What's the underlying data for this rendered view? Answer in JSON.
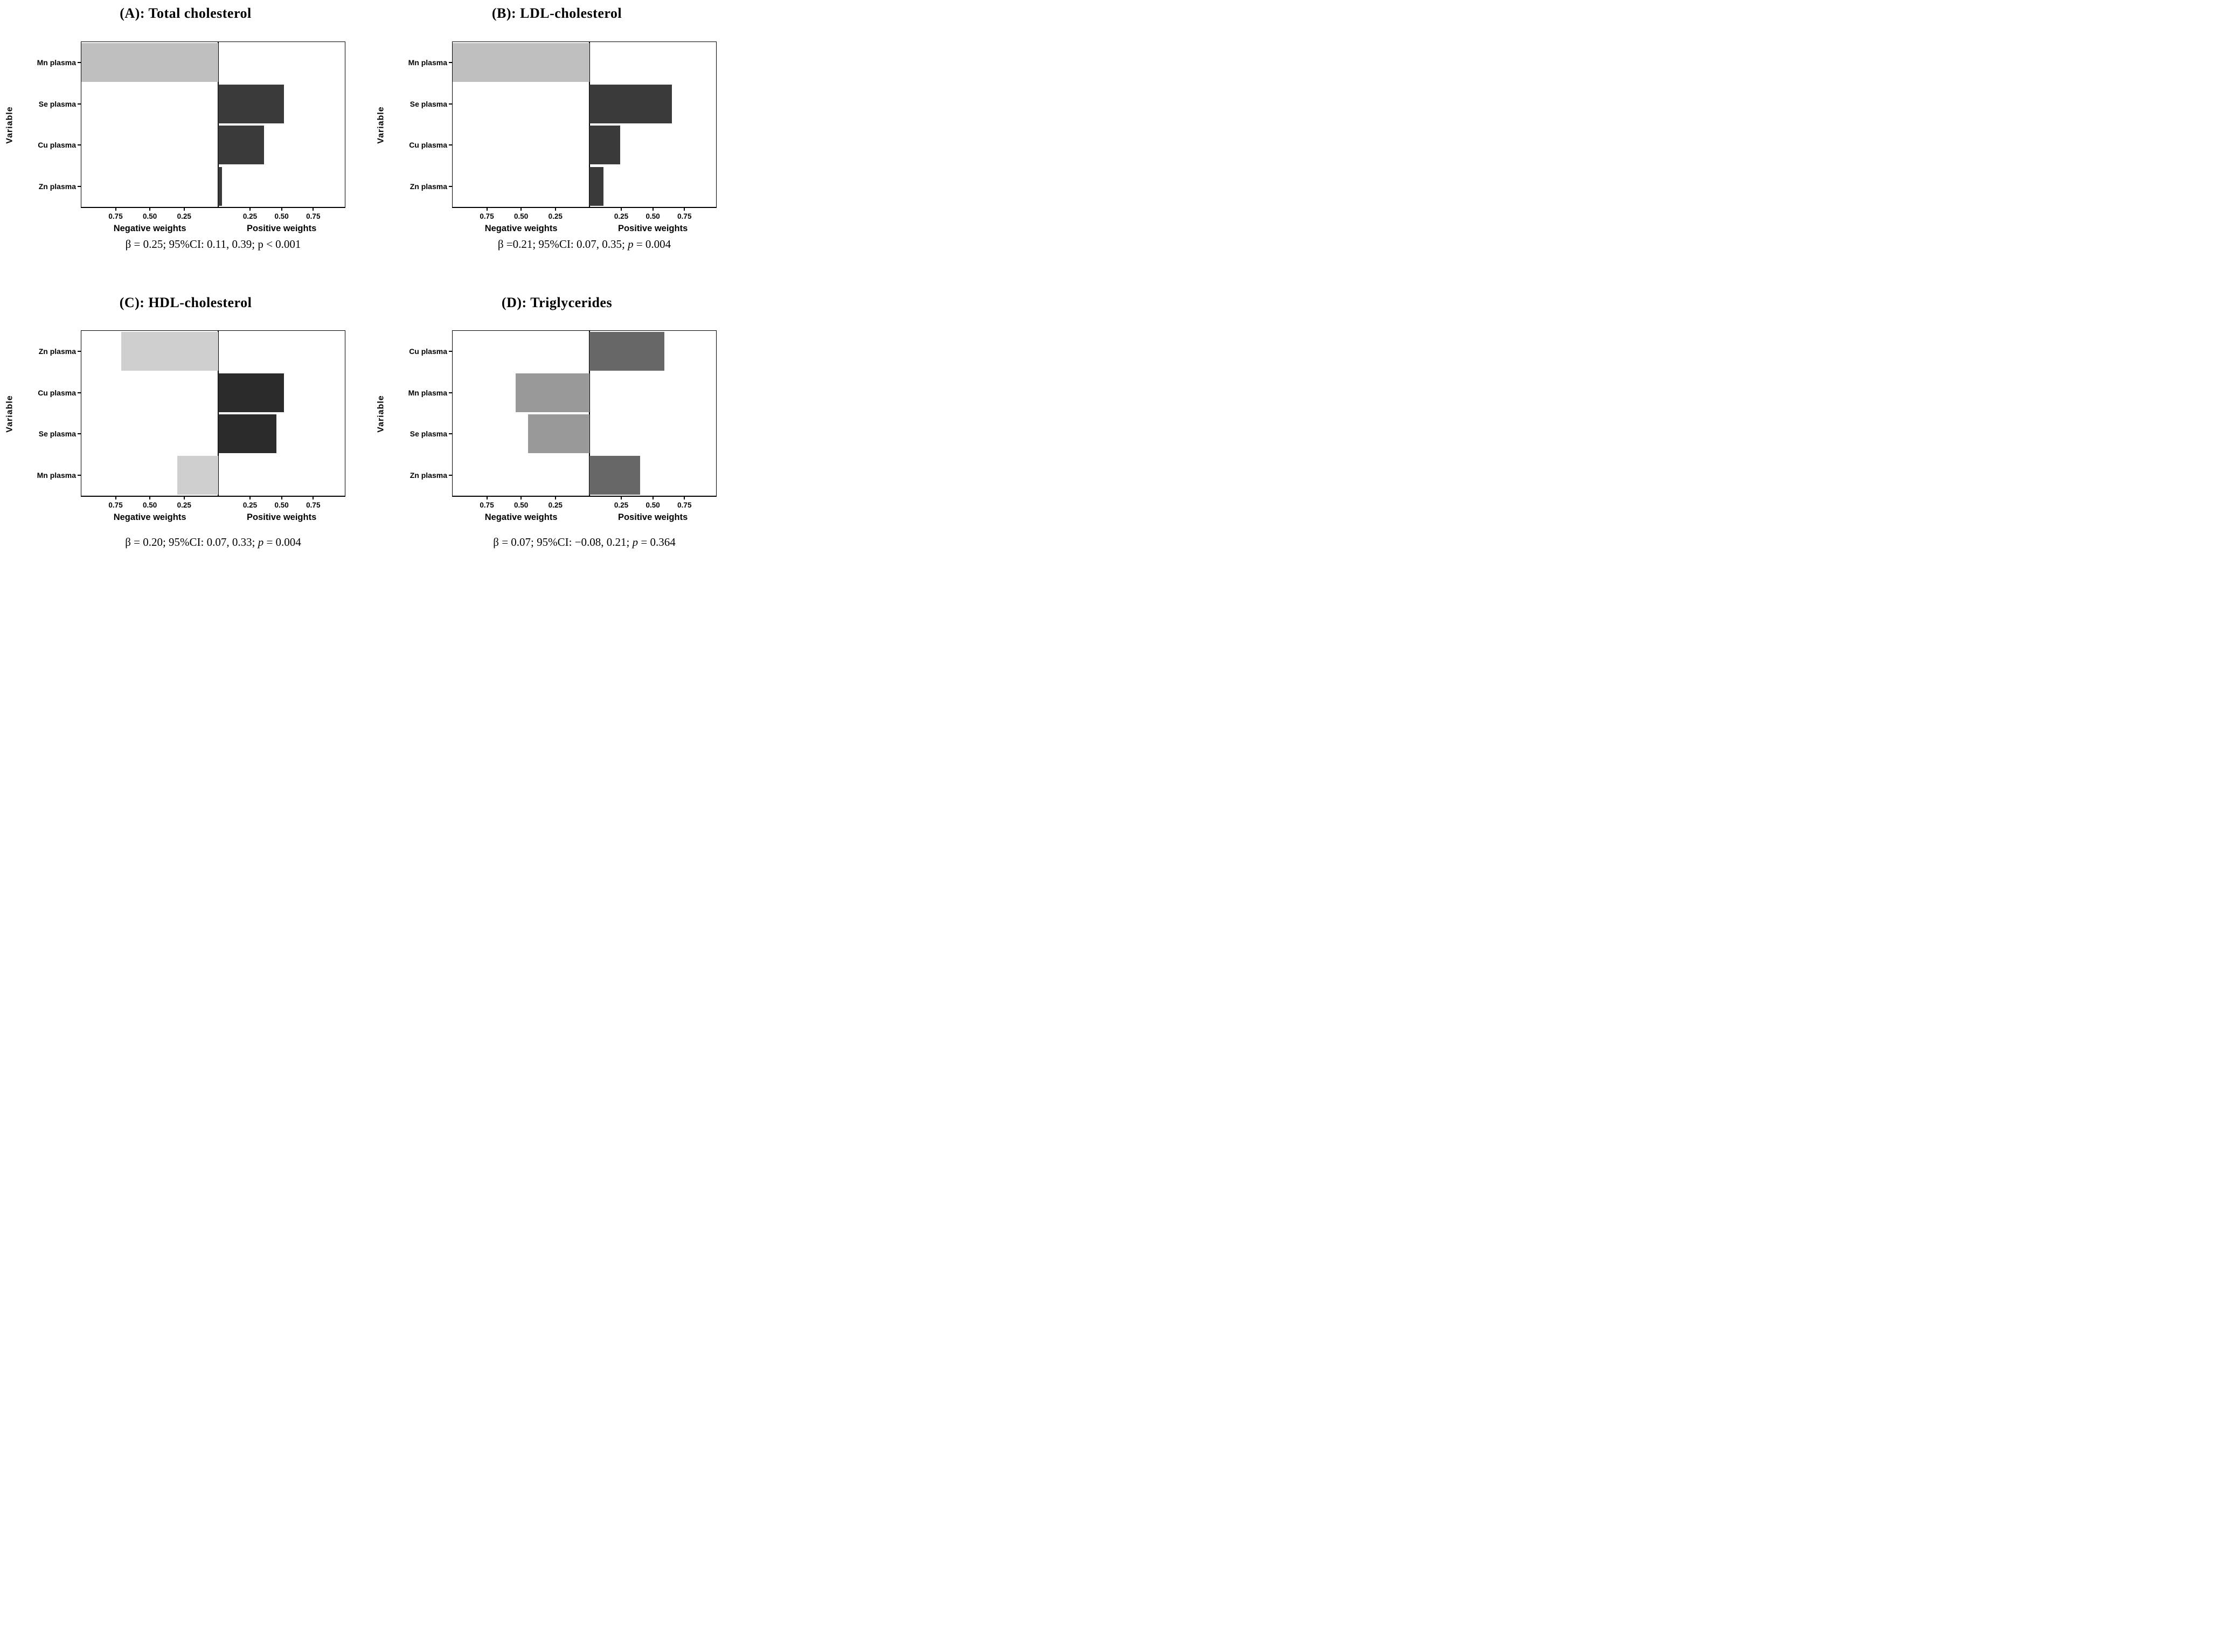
{
  "figure": {
    "y_axis_label": "Variable",
    "negative_axis_title": "Negative weights",
    "positive_axis_title": "Positive weights",
    "tick_values": [
      0.25,
      0.5,
      0.75
    ],
    "tick_labels": [
      "0.25",
      "0.50",
      "0.75"
    ],
    "negative_fraction_of_plot": 0.52,
    "axis_color": "#000000",
    "background_color": "#ffffff"
  },
  "chart_data": [
    {
      "type": "bar",
      "panel": "A",
      "title": "(A): Total cholesterol",
      "orientation": "horizontal",
      "ylabel": "Variable",
      "xlabel_negative": "Negative weights",
      "xlabel_positive": "Positive weights",
      "xlim": [
        -1.0,
        1.0
      ],
      "ticks": [
        0.25,
        0.5,
        0.75
      ],
      "categories": [
        "Mn plasma",
        "Se plasma",
        "Cu plasma",
        "Zn plasma"
      ],
      "values": [
        -1.0,
        0.52,
        0.36,
        0.03
      ],
      "colors": [
        "#bebebe",
        "#3a3a3a",
        "#3a3a3a",
        "#3a3a3a"
      ],
      "caption": "β = 0.25; 95%CI: 0.11, 0.39; p < 0.001",
      "caption_parts": {
        "pre": "β = 0.25; 95%CI: 0.11, 0.39; ",
        "p": "p",
        "post": " < 0.001",
        "p_italic": false
      }
    },
    {
      "type": "bar",
      "panel": "B",
      "title": "(B): LDL-cholesterol",
      "orientation": "horizontal",
      "ylabel": "Variable",
      "xlabel_negative": "Negative weights",
      "xlabel_positive": "Positive weights",
      "xlim": [
        -1.0,
        1.0
      ],
      "ticks": [
        0.25,
        0.5,
        0.75
      ],
      "categories": [
        "Mn plasma",
        "Se plasma",
        "Cu plasma",
        "Zn plasma"
      ],
      "values": [
        -1.0,
        0.65,
        0.24,
        0.11
      ],
      "colors": [
        "#bebebe",
        "#3a3a3a",
        "#3a3a3a",
        "#3a3a3a"
      ],
      "caption": "β =0.21; 95%CI: 0.07, 0.35; p = 0.004",
      "caption_parts": {
        "pre": "β =0.21; 95%CI: 0.07, 0.35; ",
        "p": "p",
        "post": " = 0.004",
        "p_italic": true
      }
    },
    {
      "type": "bar",
      "panel": "C",
      "title": "(C): HDL-cholesterol",
      "orientation": "horizontal",
      "ylabel": "Variable",
      "xlabel_negative": "Negative weights",
      "xlabel_positive": "Positive weights",
      "xlim": [
        -1.0,
        1.0
      ],
      "ticks": [
        0.25,
        0.5,
        0.75
      ],
      "categories": [
        "Zn plasma",
        "Cu plasma",
        "Se plasma",
        "Mn plasma"
      ],
      "values": [
        -0.71,
        0.52,
        0.46,
        -0.3
      ],
      "colors": [
        "#cfcfcf",
        "#2b2b2b",
        "#2b2b2b",
        "#cfcfcf"
      ],
      "caption": "β = 0.20; 95%CI: 0.07, 0.33; p = 0.004",
      "caption_parts": {
        "pre": "β = 0.20; 95%CI: 0.07, 0.33; ",
        "p": "p",
        "post": " = 0.004",
        "p_italic": true
      }
    },
    {
      "type": "bar",
      "panel": "D",
      "title": "(D): Triglycerides",
      "orientation": "horizontal",
      "ylabel": "Variable",
      "xlabel_negative": "Negative weights",
      "xlabel_positive": "Positive weights",
      "xlim": [
        -1.0,
        1.0
      ],
      "ticks": [
        0.25,
        0.5,
        0.75
      ],
      "categories": [
        "Cu plasma",
        "Mn plasma",
        "Se plasma",
        "Zn plasma"
      ],
      "values": [
        0.59,
        -0.54,
        -0.45,
        0.4
      ],
      "colors": [
        "#676767",
        "#999999",
        "#999999",
        "#676767"
      ],
      "caption": "β = 0.07; 95%CI: −0.08, 0.21; p = 0.364",
      "caption_parts": {
        "pre": "β = 0.07; 95%CI: −0.08, 0.21; ",
        "p": "p",
        "post": " = 0.364",
        "p_italic": true
      }
    }
  ]
}
